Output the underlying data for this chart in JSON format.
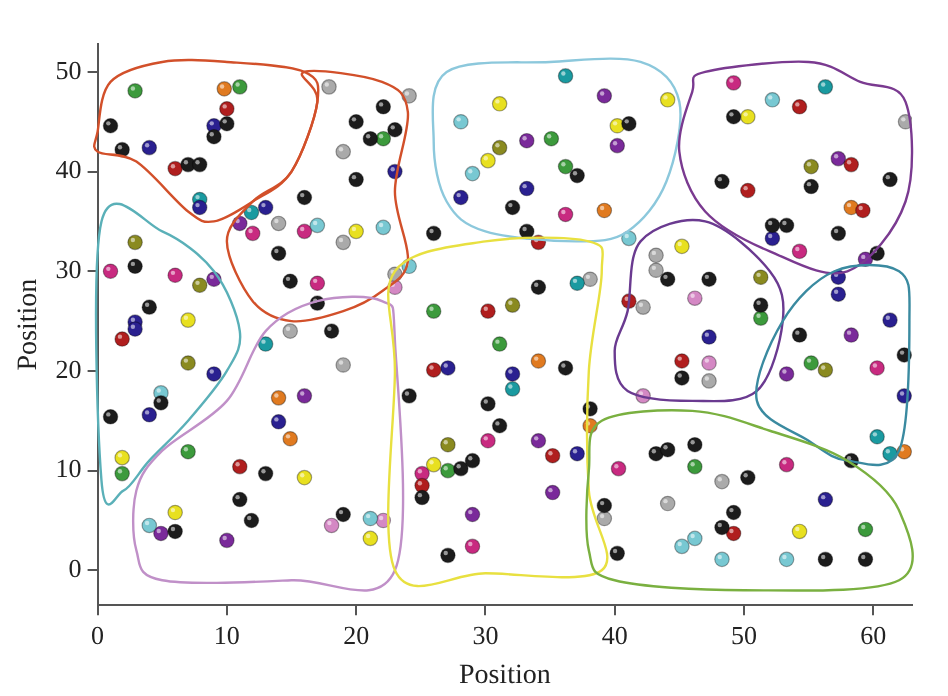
{
  "chart_data": {
    "type": "scatter",
    "xlabel": "Position",
    "ylabel": "Position",
    "xlim": [
      0,
      63
    ],
    "ylim": [
      -3.5,
      52.8
    ],
    "xticks": [
      0,
      10,
      20,
      30,
      40,
      50,
      60
    ],
    "yticks": [
      0,
      10,
      20,
      30,
      40,
      50
    ],
    "grid": false,
    "legend": false,
    "marker": "circle",
    "series": [
      {
        "color": "#1c1c1c",
        "x": [
          10,
          9,
          1,
          1.9,
          7,
          7.9,
          20,
          20,
          16,
          14,
          14.9,
          17,
          2.9,
          4,
          22.1,
          21.1,
          23,
          26,
          32.1,
          33.2,
          37.1,
          41.1,
          34.1,
          49.2,
          55.2,
          48.3,
          61.3,
          52.2,
          53.3,
          57.3,
          60.3,
          44.1,
          47.3,
          51.3,
          1,
          4.9,
          13,
          11,
          11.9,
          19,
          6,
          18.1,
          36.2,
          24.1,
          30.2,
          31.1,
          38.1,
          28.1,
          29,
          25.1,
          27.1,
          39.2,
          40.2,
          45.2,
          54.3,
          62.4,
          58.3,
          43.2,
          44.1,
          46.2,
          50.3,
          49.2,
          48.3,
          56.3,
          59.4
        ],
        "values": [
          44.8,
          43.5,
          44.6,
          42.2,
          40.7,
          40.7,
          45,
          39.2,
          37.4,
          31.8,
          29,
          26.8,
          30.5,
          26.4,
          46.5,
          43.3,
          44.2,
          33.8,
          36.4,
          34,
          39.6,
          44.8,
          28.4,
          45.5,
          38.5,
          39,
          39.2,
          34.6,
          34.6,
          33.8,
          31.8,
          29.2,
          29.2,
          26.6,
          15.4,
          16.8,
          9.7,
          7.1,
          5,
          5.6,
          3.9,
          24,
          20.3,
          17.5,
          16.7,
          14.5,
          16.2,
          10.2,
          11,
          7.3,
          1.5,
          6.5,
          1.7,
          19.3,
          23.6,
          21.6,
          11,
          11.7,
          12.1,
          12.6,
          9.3,
          5.8,
          4.3,
          1.1,
          1.1
        ]
      },
      {
        "color": "#3c9a3c",
        "x": [
          2.9,
          11,
          22.1,
          35.1,
          36.2,
          26,
          51.3,
          7,
          1.9,
          31.1,
          27.1,
          55.2,
          46.2,
          59.4
        ],
        "values": [
          48.1,
          48.5,
          43.3,
          43.3,
          40.5,
          26,
          25.3,
          11.9,
          9.7,
          22.7,
          10,
          20.8,
          10.4,
          4.1
        ]
      },
      {
        "color": "#b01e1e",
        "x": [
          10,
          6,
          34.1,
          30.2,
          54.3,
          50.3,
          58.3,
          59.2,
          41.1,
          1.9,
          11,
          26,
          35.2,
          25.1,
          45.2,
          49.2
        ],
        "values": [
          46.3,
          40.3,
          32.9,
          26,
          46.5,
          38.1,
          40.7,
          36.1,
          27,
          23.2,
          10.4,
          20.1,
          11.5,
          8.5,
          21,
          3.7
        ]
      },
      {
        "color": "#2a2090",
        "x": [
          9,
          4,
          7.9,
          13,
          23,
          28.1,
          33.2,
          52.2,
          57.3,
          57.3,
          61.3,
          2.9,
          2.9,
          9,
          4,
          14,
          27.1,
          32.1,
          37.1,
          47.3,
          62.4,
          56.3
        ],
        "values": [
          44.6,
          42.4,
          36.4,
          36.4,
          40,
          37.4,
          38.3,
          33.3,
          29.4,
          27.7,
          25.1,
          24.9,
          24.2,
          19.7,
          15.6,
          14.9,
          20.3,
          19.7,
          11.7,
          23.4,
          17.5,
          7.1
        ]
      },
      {
        "color": "#1a9aa0",
        "x": [
          7.9,
          11.9,
          36.2,
          37.1,
          56.3,
          13,
          32.1,
          60.3,
          61.3
        ],
        "values": [
          37.2,
          35.9,
          49.6,
          28.8,
          48.5,
          22.7,
          18.2,
          13.4,
          11.7
        ]
      },
      {
        "color": "#78c8d2",
        "x": [
          17,
          22.1,
          24.1,
          28.1,
          29,
          52.2,
          41.1,
          4.9,
          4,
          21.1,
          45.2,
          46.2,
          48.3,
          53.3
        ],
        "values": [
          34.6,
          34.4,
          30.5,
          45,
          39.8,
          47.2,
          33.3,
          17.8,
          4.5,
          5.2,
          2.4,
          3.2,
          1.1,
          1.1
        ]
      },
      {
        "color": "#e8e020",
        "x": [
          7,
          20,
          31.1,
          40.2,
          30.2,
          44.1,
          50.3,
          45.2,
          1.9,
          16,
          6,
          26,
          21.1,
          54.3
        ],
        "values": [
          25.1,
          34,
          46.8,
          44.6,
          41.1,
          47.2,
          45.5,
          32.5,
          11.3,
          9.3,
          5.8,
          10.6,
          3.2,
          3.9
        ]
      },
      {
        "color": "#7a2a9a",
        "x": [
          11,
          9,
          39.2,
          33.2,
          40.2,
          57.3,
          59.4,
          16,
          4.9,
          10,
          34.1,
          35.2,
          29,
          58.3,
          53.3
        ],
        "values": [
          34.8,
          29.2,
          47.6,
          43.1,
          42.6,
          41.3,
          31.2,
          17.5,
          3.7,
          3,
          13,
          7.8,
          5.6,
          23.6,
          19.7
        ]
      },
      {
        "color": "#c82a80",
        "x": [
          12,
          16,
          17,
          1,
          6,
          36.2,
          49.2,
          54.3,
          30.2,
          25.1,
          29,
          40.3,
          60.3,
          53.3
        ],
        "values": [
          33.8,
          34,
          28.8,
          30,
          29.6,
          35.7,
          48.9,
          32,
          13,
          9.7,
          2.4,
          10.2,
          20.3,
          10.6
        ]
      },
      {
        "color": "#aaaaaa",
        "x": [
          17.9,
          19,
          14,
          19,
          24.1,
          23,
          62.5,
          43.2,
          43.2,
          42.2,
          14.9,
          19,
          38.1,
          39.2,
          47.3,
          48.3,
          44.1
        ],
        "values": [
          48.5,
          42,
          34.8,
          32.9,
          47.6,
          29.7,
          45,
          31.6,
          30.1,
          26.4,
          24,
          20.6,
          29.2,
          5.2,
          19,
          8.9,
          6.7
        ]
      },
      {
        "color": "#8a8a20",
        "x": [
          2.9,
          7.9,
          31.1,
          32.1,
          55.2,
          51.3,
          7,
          27.1,
          56.3
        ],
        "values": [
          32.9,
          28.6,
          42.4,
          26.6,
          40.5,
          29.4,
          20.8,
          12.6,
          20.1
        ]
      },
      {
        "color": "#e07a20",
        "x": [
          9.8,
          39.2,
          58.3,
          14,
          14.9,
          34.1,
          38.1,
          62.4
        ],
        "values": [
          48.3,
          36.1,
          36.4,
          17.3,
          13.2,
          21,
          14.5,
          11.9
        ]
      },
      {
        "color": "#d488c4",
        "x": [
          23,
          46.2,
          18.1,
          22.1,
          47.3,
          42.2
        ],
        "values": [
          28.4,
          27.3,
          4.5,
          5,
          20.8,
          17.5
        ]
      }
    ]
  }
}
